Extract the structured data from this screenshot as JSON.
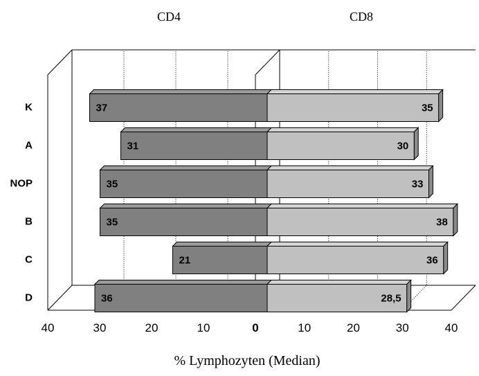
{
  "chart_data": {
    "type": "bar",
    "orientation": "horizontal",
    "style": "3d-butterfly",
    "categories": [
      "K",
      "A",
      "NOP",
      "B",
      "C",
      "D"
    ],
    "series": [
      {
        "name": "CD4",
        "values": [
          37,
          31,
          35,
          35,
          21,
          36
        ],
        "labels": [
          "37",
          "31",
          "35",
          "35",
          "21",
          "36"
        ],
        "color": "#808080"
      },
      {
        "name": "CD8",
        "values": [
          35,
          30,
          33,
          38,
          36,
          28.5
        ],
        "labels": [
          "35",
          "30",
          "33",
          "38",
          "36",
          "28,5"
        ],
        "color": "#c0c0c0"
      }
    ],
    "xlabel": "% Lymphozyten (Median)",
    "left_ticks": [
      "40",
      "30",
      "20",
      "10",
      "0"
    ],
    "right_ticks": [
      "10",
      "20",
      "30",
      "40"
    ],
    "xlim": [
      0,
      40
    ],
    "grid": "dotted vertical",
    "legend": "none"
  }
}
